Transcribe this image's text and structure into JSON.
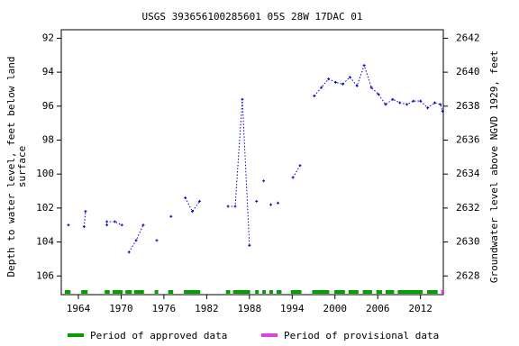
{
  "chart_data": {
    "type": "line",
    "title": "USGS 393656100285601 05S 28W 17DAC 01",
    "ylabel": [
      "Depth to water level, feet below land",
      "surface"
    ],
    "y2label": "Groundwater level above NGVD 1929, feet",
    "xlim": [
      1961.6,
      2015.2
    ],
    "xticks": [
      1964,
      1970,
      1976,
      1982,
      1988,
      1994,
      2000,
      2006,
      2012
    ],
    "ylim": [
      107.1,
      91.5
    ],
    "yticks": [
      92,
      94,
      96,
      98,
      100,
      102,
      104,
      106
    ],
    "y2lim": [
      2626.9,
      2642.5
    ],
    "y2ticks": [
      2628,
      2630,
      2632,
      2634,
      2636,
      2638,
      2640,
      2642
    ],
    "series": [
      {
        "color": "#0000cc",
        "x": [
          1962.6,
          null,
          1964.8,
          1965.0,
          null,
          1968.0,
          1968.0,
          1969.1,
          1970.1,
          null,
          1971.1,
          1972.1,
          1973.1,
          null,
          1975.0,
          null,
          1977.0,
          null,
          1979.0,
          1980.0,
          1981.0,
          null,
          1985.0,
          1986.0,
          1987.0,
          1988.0,
          null,
          1989.0,
          null,
          1990.0,
          null,
          1991.0,
          null,
          1992.0,
          null,
          1994.1,
          1995.1,
          null,
          1997.1,
          1998.1,
          1999.1,
          2000.1,
          2001.1,
          2002.1,
          2003.1,
          2004.1,
          2005.1,
          2006.1,
          2007.1,
          2008.1,
          2009.1,
          2010.1,
          2011.0,
          2012.0,
          2013.0,
          2014.0,
          2014.8,
          2015.1
        ],
        "values": [
          103.0,
          null,
          103.1,
          102.2,
          null,
          103.0,
          102.8,
          102.8,
          103.0,
          null,
          104.6,
          103.9,
          103.0,
          null,
          103.9,
          null,
          102.5,
          null,
          101.4,
          102.2,
          101.6,
          null,
          101.9,
          101.9,
          95.6,
          104.2,
          null,
          101.6,
          null,
          100.4,
          null,
          101.8,
          null,
          101.7,
          null,
          100.2,
          99.5,
          null,
          95.4,
          94.9,
          94.4,
          94.6,
          94.7,
          94.3,
          94.8,
          93.6,
          94.9,
          95.3,
          95.9,
          95.6,
          95.8,
          95.9,
          95.7,
          95.7,
          96.1,
          95.8,
          95.9,
          96.3
        ]
      }
    ],
    "periods": [
      {
        "name": "Period of approved data",
        "color": "#00a000",
        "spans": [
          [
            1962.1,
            1962.9
          ],
          [
            1964.4,
            1965.3
          ],
          [
            1967.7,
            1968.4
          ],
          [
            1968.8,
            1970.2
          ],
          [
            1970.6,
            1971.5
          ],
          [
            1971.8,
            1973.2
          ],
          [
            1974.7,
            1975.2
          ],
          [
            1976.6,
            1977.3
          ],
          [
            1978.8,
            1981.1
          ],
          [
            1984.7,
            1985.3
          ],
          [
            1985.7,
            1988.1
          ],
          [
            1988.8,
            1989.3
          ],
          [
            1989.8,
            1990.3
          ],
          [
            1990.8,
            1991.3
          ],
          [
            1991.8,
            1992.5
          ],
          [
            1993.8,
            1995.3
          ],
          [
            1996.8,
            1999.2
          ],
          [
            1999.9,
            2001.4
          ],
          [
            2001.9,
            2003.3
          ],
          [
            2003.9,
            2005.2
          ],
          [
            2005.8,
            2006.6
          ],
          [
            2007.1,
            2008.3
          ],
          [
            2008.8,
            2012.3
          ],
          [
            2012.9,
            2014.4
          ]
        ]
      },
      {
        "name": "Period of provisional data",
        "color": "#e040e0",
        "spans": [
          [
            2014.9,
            2015.2
          ]
        ]
      }
    ]
  }
}
